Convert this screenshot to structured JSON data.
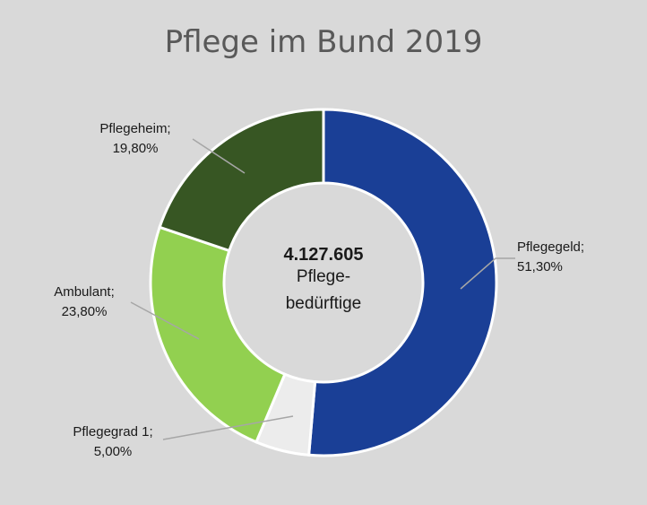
{
  "chart_data": {
    "type": "pie",
    "variant": "donut",
    "title": "Pflege im Bund 2019",
    "center_label": {
      "value": "4.127.605",
      "lines": [
        "Pflege-",
        "bedürftige"
      ]
    },
    "slices": [
      {
        "label": "Pflegegeld",
        "value": 51.3,
        "value_text": "51,30%",
        "color": "#1a3f96"
      },
      {
        "label": "Pflegegrad 1",
        "value": 5.0,
        "value_text": "5,00%",
        "color": "#ececec"
      },
      {
        "label": "Ambulant",
        "value": 23.8,
        "value_text": "23,80%",
        "color": "#92d050"
      },
      {
        "label": "Pflegeheim",
        "value": 19.8,
        "value_text": "19,80%",
        "color": "#375623"
      }
    ],
    "start_angle_deg": 0,
    "direction": "clockwise",
    "background": "#d9d9d9",
    "leader_color": "#a6a6a6"
  }
}
